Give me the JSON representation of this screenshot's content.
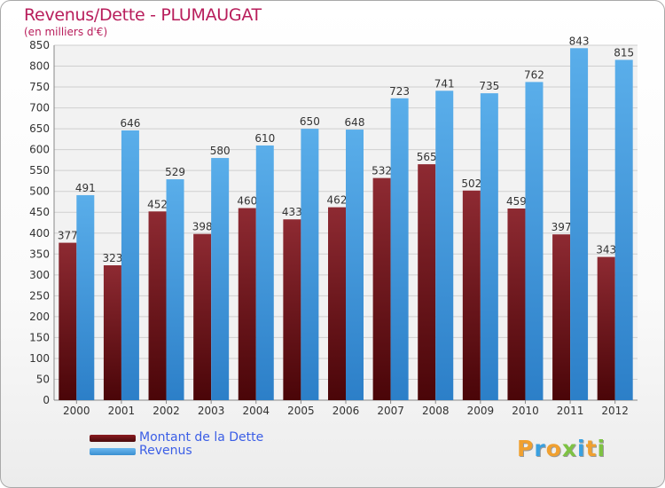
{
  "chart_data": {
    "type": "bar",
    "title": "Revenus/Dette - PLUMAUGAT",
    "subtitle": "(en milliers d'€)",
    "categories": [
      "2000",
      "2001",
      "2002",
      "2003",
      "2004",
      "2005",
      "2006",
      "2007",
      "2008",
      "2009",
      "2010",
      "2011",
      "2012"
    ],
    "series": [
      {
        "name": "Montant de la Dette",
        "color": "#8b1a1f",
        "values": [
          377,
          323,
          452,
          398,
          460,
          433,
          462,
          532,
          565,
          502,
          459,
          397,
          343
        ]
      },
      {
        "name": "Revenus",
        "color": "#4aa3e8",
        "values": [
          491,
          646,
          529,
          580,
          610,
          650,
          648,
          723,
          741,
          735,
          762,
          843,
          815
        ]
      }
    ],
    "ylim": [
      0,
      850
    ],
    "yticks": [
      0,
      50,
      100,
      150,
      200,
      250,
      300,
      350,
      400,
      450,
      500,
      550,
      600,
      650,
      700,
      750,
      800,
      850
    ],
    "grid": true,
    "legend_position": "bottom-left"
  },
  "logo": {
    "letters": [
      {
        "ch": "P",
        "color": "#f0a030"
      },
      {
        "ch": "r",
        "color": "#3aa0e0"
      },
      {
        "ch": "o",
        "color": "#f0a030"
      },
      {
        "ch": "x",
        "color": "#7ec243"
      },
      {
        "ch": "i",
        "color": "#3aa0e0"
      },
      {
        "ch": "t",
        "color": "#f0a030"
      },
      {
        "ch": "i",
        "color": "#7ec243"
      }
    ]
  }
}
